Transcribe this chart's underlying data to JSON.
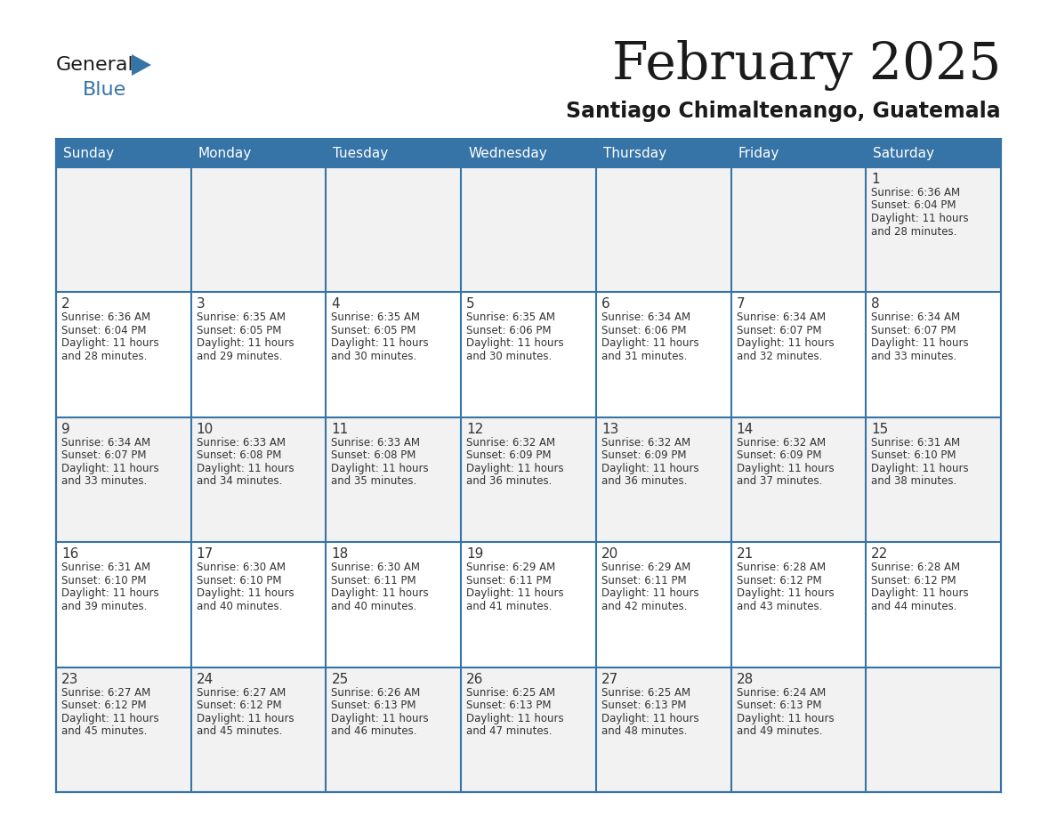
{
  "title": "February 2025",
  "subtitle": "Santiago Chimaltenango, Guatemala",
  "header_color": "#3674a8",
  "header_text_color": "#ffffff",
  "border_color": "#3674a8",
  "day_number_color": "#333333",
  "text_color": "#333333",
  "cell_bg_odd": "#f2f2f2",
  "cell_bg_even": "#ffffff",
  "days_of_week": [
    "Sunday",
    "Monday",
    "Tuesday",
    "Wednesday",
    "Thursday",
    "Friday",
    "Saturday"
  ],
  "calendar": [
    [
      null,
      null,
      null,
      null,
      null,
      null,
      1
    ],
    [
      2,
      3,
      4,
      5,
      6,
      7,
      8
    ],
    [
      9,
      10,
      11,
      12,
      13,
      14,
      15
    ],
    [
      16,
      17,
      18,
      19,
      20,
      21,
      22
    ],
    [
      23,
      24,
      25,
      26,
      27,
      28,
      null
    ]
  ],
  "sunrise": {
    "1": "6:36 AM",
    "2": "6:36 AM",
    "3": "6:35 AM",
    "4": "6:35 AM",
    "5": "6:35 AM",
    "6": "6:34 AM",
    "7": "6:34 AM",
    "8": "6:34 AM",
    "9": "6:34 AM",
    "10": "6:33 AM",
    "11": "6:33 AM",
    "12": "6:32 AM",
    "13": "6:32 AM",
    "14": "6:32 AM",
    "15": "6:31 AM",
    "16": "6:31 AM",
    "17": "6:30 AM",
    "18": "6:30 AM",
    "19": "6:29 AM",
    "20": "6:29 AM",
    "21": "6:28 AM",
    "22": "6:28 AM",
    "23": "6:27 AM",
    "24": "6:27 AM",
    "25": "6:26 AM",
    "26": "6:25 AM",
    "27": "6:25 AM",
    "28": "6:24 AM"
  },
  "sunset": {
    "1": "6:04 PM",
    "2": "6:04 PM",
    "3": "6:05 PM",
    "4": "6:05 PM",
    "5": "6:06 PM",
    "6": "6:06 PM",
    "7": "6:07 PM",
    "8": "6:07 PM",
    "9": "6:07 PM",
    "10": "6:08 PM",
    "11": "6:08 PM",
    "12": "6:09 PM",
    "13": "6:09 PM",
    "14": "6:09 PM",
    "15": "6:10 PM",
    "16": "6:10 PM",
    "17": "6:10 PM",
    "18": "6:11 PM",
    "19": "6:11 PM",
    "20": "6:11 PM",
    "21": "6:12 PM",
    "22": "6:12 PM",
    "23": "6:12 PM",
    "24": "6:12 PM",
    "25": "6:13 PM",
    "26": "6:13 PM",
    "27": "6:13 PM",
    "28": "6:13 PM"
  },
  "daylight": {
    "1": "11 hours and 28 minutes.",
    "2": "11 hours and 28 minutes.",
    "3": "11 hours and 29 minutes.",
    "4": "11 hours and 30 minutes.",
    "5": "11 hours and 30 minutes.",
    "6": "11 hours and 31 minutes.",
    "7": "11 hours and 32 minutes.",
    "8": "11 hours and 33 minutes.",
    "9": "11 hours and 33 minutes.",
    "10": "11 hours and 34 minutes.",
    "11": "11 hours and 35 minutes.",
    "12": "11 hours and 36 minutes.",
    "13": "11 hours and 36 minutes.",
    "14": "11 hours and 37 minutes.",
    "15": "11 hours and 38 minutes.",
    "16": "11 hours and 39 minutes.",
    "17": "11 hours and 40 minutes.",
    "18": "11 hours and 40 minutes.",
    "19": "11 hours and 41 minutes.",
    "20": "11 hours and 42 minutes.",
    "21": "11 hours and 43 minutes.",
    "22": "11 hours and 44 minutes.",
    "23": "11 hours and 45 minutes.",
    "24": "11 hours and 45 minutes.",
    "25": "11 hours and 46 minutes.",
    "26": "11 hours and 47 minutes.",
    "27": "11 hours and 48 minutes.",
    "28": "11 hours and 49 minutes."
  },
  "logo_general_color": "#1a1a1a",
  "logo_blue_color": "#3674a8",
  "title_color": "#1a1a1a",
  "subtitle_color": "#1a1a1a",
  "title_fontsize": 42,
  "subtitle_fontsize": 17,
  "header_fontsize": 11,
  "day_num_fontsize": 11,
  "cell_text_fontsize": 8.5,
  "logo_fontsize": 16
}
